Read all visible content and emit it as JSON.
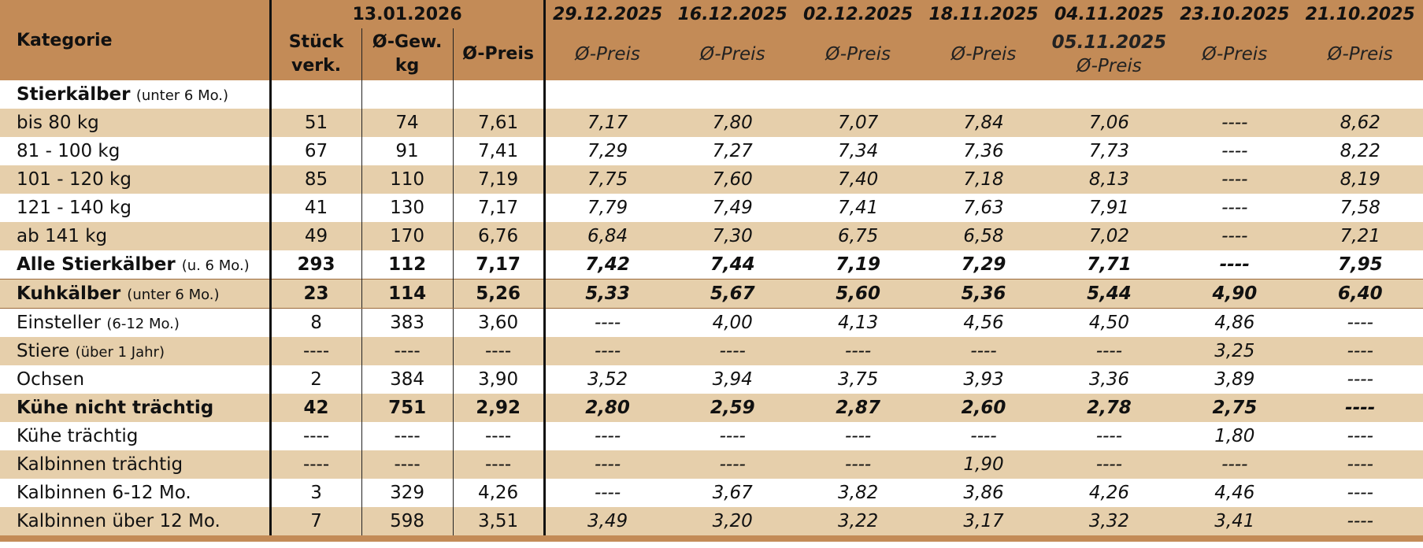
{
  "header": {
    "kategorie_label": "Kategorie",
    "current_date": "13.01.2026",
    "col_stueck": [
      "Stück",
      "verk."
    ],
    "col_gewicht": [
      "Ø-Gew.",
      "kg"
    ],
    "col_preis": "Ø-Preis",
    "hist_dates": [
      "29.12.2025",
      "16.12.2025",
      "02.12.2025",
      "18.11.2025",
      "04.11.2025",
      "23.10.2025",
      "21.10.2025"
    ],
    "hist_extra_date": "05.11.2025",
    "hist_sub": "Ø-Preis"
  },
  "rows": [
    {
      "label": "Stierkälber",
      "note": "(unter 6 Mo.)",
      "values": [
        "",
        "",
        "",
        "",
        "",
        "",
        "",
        "",
        "",
        ""
      ]
    },
    {
      "label": "bis 80 kg",
      "note": "",
      "values": [
        "51",
        "74",
        "7,61",
        "7,17",
        "7,80",
        "7,07",
        "7,84",
        "7,06",
        "----",
        "8,62"
      ]
    },
    {
      "label": "81 - 100 kg",
      "note": "",
      "values": [
        "67",
        "91",
        "7,41",
        "7,29",
        "7,27",
        "7,34",
        "7,36",
        "7,73",
        "----",
        "8,22"
      ]
    },
    {
      "label": "101 - 120 kg",
      "note": "",
      "values": [
        "85",
        "110",
        "7,19",
        "7,75",
        "7,60",
        "7,40",
        "7,18",
        "8,13",
        "----",
        "8,19"
      ]
    },
    {
      "label": "121 - 140 kg",
      "note": "",
      "values": [
        "41",
        "130",
        "7,17",
        "7,79",
        "7,49",
        "7,41",
        "7,63",
        "7,91",
        "----",
        "7,58"
      ]
    },
    {
      "label": "ab 141 kg",
      "note": "",
      "values": [
        "49",
        "170",
        "6,76",
        "6,84",
        "7,30",
        "6,75",
        "6,58",
        "7,02",
        "----",
        "7,21"
      ]
    },
    {
      "label": "Alle Stierkälber",
      "note": "(u. 6 Mo.)",
      "values": [
        "293",
        "112",
        "7,17",
        "7,42",
        "7,44",
        "7,19",
        "7,29",
        "7,71",
        "----",
        "7,95"
      ]
    },
    {
      "label": "Kuhkälber",
      "note": "(unter 6 Mo.)",
      "values": [
        "23",
        "114",
        "5,26",
        "5,33",
        "5,67",
        "5,60",
        "5,36",
        "5,44",
        "4,90",
        "6,40"
      ]
    },
    {
      "label": "Einsteller",
      "note": "(6-12 Mo.)",
      "values": [
        "8",
        "383",
        "3,60",
        "----",
        "4,00",
        "4,13",
        "4,56",
        "4,50",
        "4,86",
        "----"
      ]
    },
    {
      "label": "Stiere",
      "note": "(über 1 Jahr)",
      "values": [
        "----",
        "----",
        "----",
        "----",
        "----",
        "----",
        "----",
        "----",
        "3,25",
        "----"
      ]
    },
    {
      "label": "Ochsen",
      "note": "",
      "values": [
        "2",
        "384",
        "3,90",
        "3,52",
        "3,94",
        "3,75",
        "3,93",
        "3,36",
        "3,89",
        "----"
      ]
    },
    {
      "label": "Kühe nicht trächtig",
      "note": "",
      "values": [
        "42",
        "751",
        "2,92",
        "2,80",
        "2,59",
        "2,87",
        "2,60",
        "2,78",
        "2,75",
        "----"
      ]
    },
    {
      "label": "Kühe trächtig",
      "note": "",
      "values": [
        "----",
        "----",
        "----",
        "----",
        "----",
        "----",
        "----",
        "----",
        "1,80",
        "----"
      ]
    },
    {
      "label": "Kalbinnen trächtig",
      "note": "",
      "values": [
        "----",
        "----",
        "----",
        "----",
        "----",
        "----",
        "1,90",
        "----",
        "----",
        "----"
      ]
    },
    {
      "label": "Kalbinnen 6-12 Mo.",
      "note": "",
      "values": [
        "3",
        "329",
        "4,26",
        "----",
        "3,67",
        "3,82",
        "3,86",
        "4,26",
        "4,46",
        "----"
      ]
    },
    {
      "label": "Kalbinnen über 12 Mo.",
      "note": "",
      "values": [
        "7",
        "598",
        "3,51",
        "3,49",
        "3,20",
        "3,22",
        "3,17",
        "3,32",
        "3,41",
        "----"
      ]
    }
  ],
  "colors": {
    "header": "#c38b57",
    "shade": "#e6cfab",
    "white": "#ffffff"
  }
}
